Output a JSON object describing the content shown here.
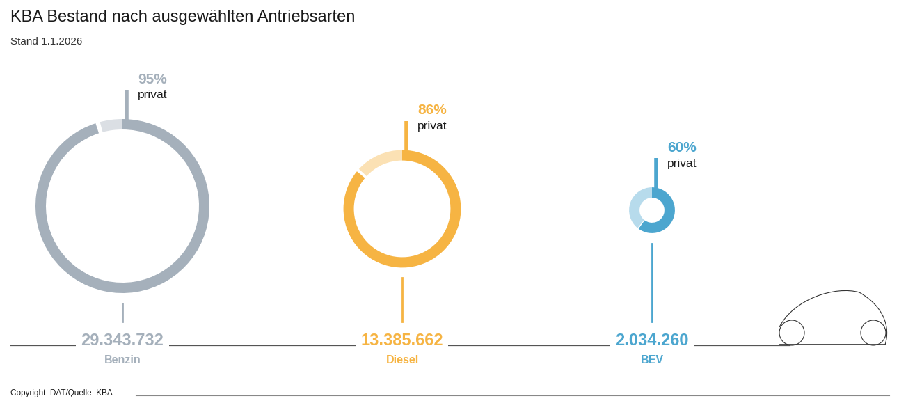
{
  "chart_data": {
    "type": "donut",
    "title": "KBA Bestand nach ausgewählten Antriebsarten",
    "subtitle": "Stand 1.1.2026",
    "categories": [
      "Benzin",
      "Diesel",
      "BEV"
    ],
    "values": [
      29343732,
      13385662,
      2034260
    ],
    "value_labels": [
      "29.343.732",
      "13.385.662",
      "2.034.260"
    ],
    "share_private": [
      95,
      86,
      60
    ],
    "share_private_labels": [
      "95%",
      "86%",
      "60%"
    ],
    "share_label": "privat",
    "colors": [
      "#a5b0bb",
      "#f6b443",
      "#4ca6cf"
    ],
    "source": "Copyright: DAT/Quelle: KBA"
  }
}
